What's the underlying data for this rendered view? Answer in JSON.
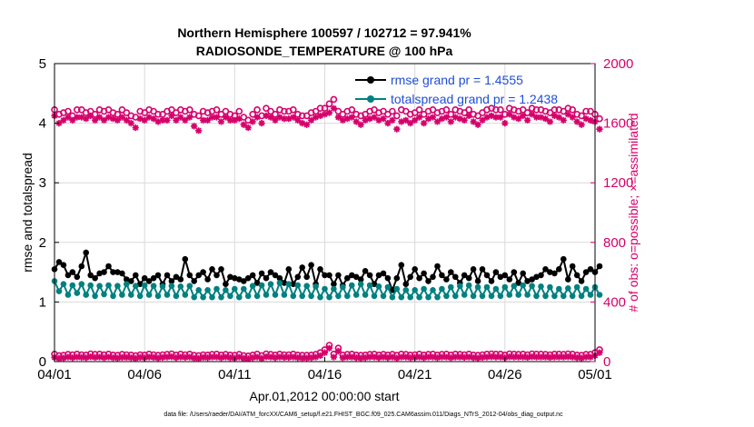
{
  "chart_data": {
    "type": "line",
    "title": "Northern Hemisphere 100597 / 102712 = 97.941%",
    "subtitle": "RADIOSONDE_TEMPERATURE @ 100 hPa",
    "xlabel": "Apr.01,2012 00:00:00 start",
    "ylabel": "rmse and totalspread",
    "y2label": "# of obs: o=possible; ×=assimilated",
    "xlim": [
      0,
      30
    ],
    "ylim": [
      0,
      5
    ],
    "y2lim": [
      0,
      2000
    ],
    "x_ticks": [
      {
        "v": 0,
        "label": "04/01"
      },
      {
        "v": 5,
        "label": "04/06"
      },
      {
        "v": 10,
        "label": "04/11"
      },
      {
        "v": 15,
        "label": "04/16"
      },
      {
        "v": 20,
        "label": "04/21"
      },
      {
        "v": 25,
        "label": "04/26"
      },
      {
        "v": 30,
        "label": "05/01"
      }
    ],
    "y_ticks": [
      "0",
      "1",
      "2",
      "3",
      "4",
      "5"
    ],
    "y2_ticks": [
      "0",
      "400",
      "800",
      "1200",
      "1600",
      "2000"
    ],
    "x_step": 0.25,
    "series": [
      {
        "name": "rmse grand pr = 1.4555",
        "axis": "left",
        "color": "#000000",
        "marker": "circle",
        "values": [
          1.55,
          1.67,
          1.62,
          1.45,
          1.5,
          1.42,
          1.6,
          1.83,
          1.45,
          1.4,
          1.48,
          1.5,
          1.6,
          1.5,
          1.5,
          1.48,
          1.38,
          1.35,
          1.45,
          1.3,
          1.4,
          1.35,
          1.4,
          1.45,
          1.3,
          1.45,
          1.35,
          1.42,
          1.38,
          1.72,
          1.45,
          1.35,
          1.45,
          1.5,
          1.38,
          1.55,
          1.45,
          1.55,
          1.3,
          1.42,
          1.4,
          1.38,
          1.35,
          1.4,
          1.45,
          1.32,
          1.48,
          1.4,
          1.5,
          1.45,
          1.4,
          1.32,
          1.55,
          1.3,
          1.42,
          1.58,
          1.42,
          1.62,
          1.3,
          1.55,
          1.45,
          1.45,
          1.3,
          1.45,
          1.28,
          1.4,
          1.45,
          1.42,
          1.38,
          1.52,
          1.45,
          1.3,
          1.45,
          1.48,
          1.4,
          1.2,
          1.4,
          1.62,
          1.3,
          1.42,
          1.55,
          1.4,
          1.48,
          1.35,
          1.42,
          1.6,
          1.45,
          1.38,
          1.5,
          1.42,
          1.32,
          1.45,
          1.4,
          1.55,
          1.35,
          1.55,
          1.45,
          1.35,
          1.5,
          1.42,
          1.45,
          1.38,
          1.5,
          1.32,
          1.48,
          1.35,
          1.38,
          1.42,
          1.45,
          1.55,
          1.5,
          1.48,
          1.55,
          1.72,
          1.38,
          1.6,
          1.45,
          1.35,
          1.5,
          1.55,
          1.5,
          1.6
        ]
      },
      {
        "name": "totalspread grand pr = 1.2438",
        "axis": "left",
        "color": "#008080",
        "marker": "circle",
        "values": [
          1.35,
          1.18,
          1.3,
          1.12,
          1.28,
          1.15,
          1.3,
          1.12,
          1.28,
          1.1,
          1.27,
          1.13,
          1.28,
          1.1,
          1.27,
          1.12,
          1.3,
          1.12,
          1.27,
          1.1,
          1.28,
          1.12,
          1.27,
          1.1,
          1.26,
          1.12,
          1.27,
          1.1,
          1.26,
          1.12,
          1.27,
          1.08,
          1.2,
          1.08,
          1.2,
          1.08,
          1.22,
          1.08,
          1.2,
          1.1,
          1.22,
          1.08,
          1.22,
          1.1,
          1.27,
          1.1,
          1.28,
          1.12,
          1.3,
          1.12,
          1.32,
          1.12,
          1.3,
          1.1,
          1.28,
          1.1,
          1.27,
          1.1,
          1.26,
          1.08,
          1.22,
          1.08,
          1.22,
          1.1,
          1.25,
          1.1,
          1.28,
          1.12,
          1.3,
          1.12,
          1.28,
          1.1,
          1.26,
          1.1,
          1.25,
          1.08,
          1.22,
          1.08,
          1.2,
          1.08,
          1.2,
          1.08,
          1.22,
          1.08,
          1.2,
          1.08,
          1.22,
          1.1,
          1.25,
          1.1,
          1.27,
          1.12,
          1.28,
          1.1,
          1.25,
          1.1,
          1.25,
          1.1,
          1.22,
          1.1,
          1.25,
          1.12,
          1.27,
          1.12,
          1.28,
          1.12,
          1.27,
          1.1,
          1.26,
          1.1,
          1.25,
          1.1,
          1.22,
          1.1,
          1.23,
          1.1,
          1.25,
          1.1,
          1.22,
          1.12,
          1.25,
          1.12
        ]
      },
      {
        "name": "possible",
        "axis": "right",
        "color": "#d6006b",
        "marker": "circle-open",
        "values": [
          1690,
          1660,
          1670,
          1680,
          1650,
          1690,
          1690,
          1670,
          1680,
          1660,
          1690,
          1680,
          1690,
          1670,
          1660,
          1690,
          1670,
          1650,
          1640,
          1680,
          1670,
          1690,
          1680,
          1660,
          1660,
          1680,
          1690,
          1670,
          1690,
          1680,
          1690,
          1660,
          1650,
          1680,
          1670,
          1680,
          1690,
          1660,
          1680,
          1660,
          1650,
          1680,
          1640,
          1620,
          1660,
          1690,
          1650,
          1700,
          1680,
          1660,
          1690,
          1680,
          1680,
          1690,
          1660,
          1650,
          1650,
          1670,
          1680,
          1700,
          1700,
          1730,
          1760,
          1680,
          1660,
          1680,
          1690,
          1660,
          1650,
          1660,
          1680,
          1690,
          1670,
          1680,
          1660,
          1680,
          1650,
          1690,
          1680,
          1660,
          1670,
          1690,
          1660,
          1680,
          1690,
          1670,
          1680,
          1690,
          1660,
          1690,
          1680,
          1670,
          1690,
          1660,
          1650,
          1670,
          1690,
          1700,
          1690,
          1690,
          1660,
          1700,
          1690,
          1680,
          1690,
          1670,
          1700,
          1690,
          1690,
          1680,
          1670,
          1690,
          1690,
          1680,
          1700,
          1690,
          1660,
          1650,
          1680,
          1680,
          1660,
          1630
        ]
      },
      {
        "name": "assimilated",
        "axis": "right",
        "color": "#d6006b",
        "marker": "star",
        "values": [
          1650,
          1600,
          1620,
          1640,
          1620,
          1640,
          1640,
          1630,
          1650,
          1620,
          1640,
          1620,
          1640,
          1630,
          1620,
          1640,
          1620,
          1600,
          1570,
          1630,
          1620,
          1640,
          1630,
          1610,
          1620,
          1620,
          1650,
          1620,
          1640,
          1620,
          1640,
          1580,
          1550,
          1620,
          1620,
          1640,
          1640,
          1610,
          1640,
          1620,
          1620,
          1630,
          1590,
          1570,
          1610,
          1640,
          1600,
          1650,
          1640,
          1620,
          1640,
          1630,
          1630,
          1640,
          1620,
          1600,
          1590,
          1620,
          1640,
          1650,
          1660,
          1670,
          1700,
          1640,
          1620,
          1630,
          1640,
          1610,
          1590,
          1620,
          1630,
          1640,
          1620,
          1630,
          1600,
          1620,
          1560,
          1610,
          1620,
          1600,
          1620,
          1640,
          1600,
          1630,
          1640,
          1610,
          1630,
          1640,
          1610,
          1640,
          1630,
          1620,
          1650,
          1610,
          1590,
          1620,
          1640,
          1650,
          1640,
          1640,
          1600,
          1660,
          1640,
          1630,
          1650,
          1620,
          1660,
          1640,
          1640,
          1630,
          1610,
          1650,
          1640,
          1620,
          1660,
          1640,
          1610,
          1590,
          1630,
          1620,
          1610,
          1560
        ]
      },
      {
        "name": "possible (low)",
        "axis": "right",
        "color": "#d6006b",
        "marker": "circle-open",
        "values": [
          50,
          40,
          42,
          48,
          45,
          50,
          46,
          44,
          52,
          48,
          50,
          45,
          50,
          44,
          42,
          48,
          46,
          44,
          40,
          46,
          44,
          50,
          46,
          42,
          46,
          48,
          52,
          44,
          50,
          46,
          50,
          42,
          40,
          46,
          44,
          48,
          50,
          44,
          48,
          44,
          42,
          48,
          40,
          38,
          44,
          50,
          40,
          52,
          48,
          44,
          50,
          46,
          46,
          50,
          44,
          42,
          42,
          44,
          48,
          60,
          80,
          110,
          50,
          90,
          44,
          48,
          50,
          44,
          42,
          44,
          48,
          50,
          44,
          48,
          44,
          48,
          42,
          50,
          48,
          44,
          46,
          50,
          44,
          48,
          50,
          44,
          48,
          50,
          44,
          50,
          48,
          46,
          50,
          44,
          42,
          46,
          50,
          52,
          50,
          50,
          44,
          52,
          50,
          48,
          50,
          46,
          52,
          50,
          50,
          48,
          46,
          50,
          50,
          48,
          52,
          50,
          44,
          42,
          48,
          48,
          60,
          80
        ]
      },
      {
        "name": "assimilated (low)",
        "axis": "right",
        "color": "#d6006b",
        "marker": "star",
        "values": [
          28,
          22,
          24,
          30,
          26,
          30,
          28,
          26,
          32,
          28,
          30,
          26,
          30,
          26,
          24,
          28,
          28,
          26,
          22,
          28,
          26,
          30,
          28,
          24,
          28,
          30,
          32,
          26,
          30,
          28,
          30,
          24,
          22,
          28,
          26,
          30,
          30,
          26,
          30,
          26,
          24,
          30,
          22,
          20,
          26,
          30,
          22,
          32,
          30,
          26,
          30,
          28,
          28,
          30,
          26,
          24,
          24,
          26,
          30,
          40,
          60,
          90,
          30,
          70,
          26,
          30,
          30,
          26,
          24,
          26,
          30,
          30,
          26,
          30,
          26,
          30,
          24,
          30,
          30,
          26,
          28,
          30,
          26,
          30,
          30,
          26,
          30,
          30,
          26,
          30,
          30,
          28,
          30,
          26,
          24,
          28,
          30,
          32,
          30,
          30,
          26,
          32,
          30,
          30,
          30,
          28,
          32,
          30,
          30,
          30,
          28,
          30,
          30,
          30,
          32,
          30,
          26,
          24,
          30,
          30,
          40,
          60
        ]
      }
    ]
  },
  "legend": [
    {
      "label": "rmse grand pr = 1.4555",
      "color": "#000000"
    },
    {
      "label": "totalspread grand pr = 1.2438",
      "color": "#008080"
    }
  ],
  "footer": "data file: /Users/raeder/DAI/ATM_forcXX/CAM6_setup/f.e21.FHIST_BGC.f09_025.CAM6assim.011/Diags_NTrS_2012-04/obs_diag_output.nc",
  "colors": {
    "left_axis": "#000000",
    "right_axis": "#d6006b",
    "grid": "#d9d9d9"
  }
}
